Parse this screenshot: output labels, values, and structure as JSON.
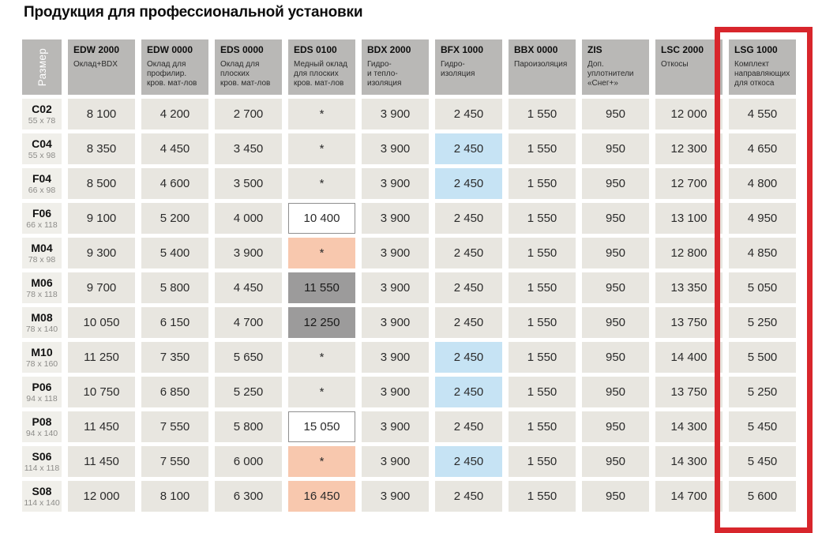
{
  "page": {
    "title": "Продукция для профессиональной установки"
  },
  "table": {
    "size_header": "Размер",
    "columns": [
      {
        "code": "EDW 2000",
        "desc": "Оклад+BDX"
      },
      {
        "code": "EDW 0000",
        "desc": "Оклад для\nпрофилир.\nкров. мат-лов"
      },
      {
        "code": "EDS 0000",
        "desc": "Оклад для\nплоских\nкров. мат-лов"
      },
      {
        "code": "EDS 0100",
        "desc": "Медный оклад\nдля плоских\nкров. мат-лов"
      },
      {
        "code": "BDX 2000",
        "desc": "Гидро-\nи тепло-\nизоляция"
      },
      {
        "code": "BFX 1000",
        "desc": "Гидро-\nизоляция"
      },
      {
        "code": "BBX 0000",
        "desc": "Пароизоляция"
      },
      {
        "code": "ZIS",
        "desc": "Доп.\nуплотнители\n«Снег+»"
      },
      {
        "code": "LSC 2000",
        "desc": "Откосы"
      },
      {
        "code": "LSG 1000",
        "desc": "Комплект\nнаправляющих\nдля откоса"
      }
    ],
    "rows": [
      {
        "code": "C02",
        "size": "55 x 78",
        "values": [
          "8 100",
          "4 200",
          "2 700",
          "*",
          "3 900",
          "2 450",
          "1 550",
          "950",
          "12 000",
          "4 550"
        ],
        "styles": [
          "",
          "",
          "",
          "",
          "",
          "",
          "",
          "",
          "",
          ""
        ]
      },
      {
        "code": "C04",
        "size": "55 x 98",
        "values": [
          "8 350",
          "4 450",
          "3 450",
          "*",
          "3 900",
          "2 450",
          "1 550",
          "950",
          "12 300",
          "4 650"
        ],
        "styles": [
          "",
          "",
          "",
          "",
          "",
          "blue",
          "",
          "",
          "",
          ""
        ]
      },
      {
        "code": "F04",
        "size": "66 x 98",
        "values": [
          "8 500",
          "4 600",
          "3 500",
          "*",
          "3 900",
          "2 450",
          "1 550",
          "950",
          "12 700",
          "4 800"
        ],
        "styles": [
          "",
          "",
          "",
          "",
          "",
          "blue",
          "",
          "",
          "",
          ""
        ]
      },
      {
        "code": "F06",
        "size": "66 x 118",
        "values": [
          "9 100",
          "5 200",
          "4 000",
          "10 400",
          "3 900",
          "2 450",
          "1 550",
          "950",
          "13 100",
          "4 950"
        ],
        "styles": [
          "",
          "",
          "",
          "white",
          "",
          "",
          "",
          "",
          "",
          ""
        ]
      },
      {
        "code": "M04",
        "size": "78 x 98",
        "values": [
          "9 300",
          "5 400",
          "3 900",
          "*",
          "3 900",
          "2 450",
          "1 550",
          "950",
          "12 800",
          "4 850"
        ],
        "styles": [
          "",
          "",
          "",
          "salmon",
          "",
          "",
          "",
          "",
          "",
          ""
        ]
      },
      {
        "code": "M06",
        "size": "78 x 118",
        "values": [
          "9 700",
          "5 800",
          "4 450",
          "11 550",
          "3 900",
          "2 450",
          "1 550",
          "950",
          "13 350",
          "5 050"
        ],
        "styles": [
          "",
          "",
          "",
          "gray",
          "",
          "",
          "",
          "",
          "",
          ""
        ]
      },
      {
        "code": "M08",
        "size": "78 x 140",
        "values": [
          "10 050",
          "6 150",
          "4 700",
          "12 250",
          "3 900",
          "2 450",
          "1 550",
          "950",
          "13 750",
          "5 250"
        ],
        "styles": [
          "",
          "",
          "",
          "gray",
          "",
          "",
          "",
          "",
          "",
          ""
        ]
      },
      {
        "code": "M10",
        "size": "78 x 160",
        "values": [
          "11 250",
          "7 350",
          "5 650",
          "*",
          "3 900",
          "2 450",
          "1 550",
          "950",
          "14 400",
          "5 500"
        ],
        "styles": [
          "",
          "",
          "",
          "",
          "",
          "blue",
          "",
          "",
          "",
          ""
        ]
      },
      {
        "code": "P06",
        "size": "94 x 118",
        "values": [
          "10 750",
          "6 850",
          "5 250",
          "*",
          "3 900",
          "2 450",
          "1 550",
          "950",
          "13 750",
          "5 250"
        ],
        "styles": [
          "",
          "",
          "",
          "",
          "",
          "blue",
          "",
          "",
          "",
          ""
        ]
      },
      {
        "code": "P08",
        "size": "94 x 140",
        "values": [
          "11 450",
          "7 550",
          "5 800",
          "15 050",
          "3 900",
          "2 450",
          "1 550",
          "950",
          "14 300",
          "5 450"
        ],
        "styles": [
          "",
          "",
          "",
          "white",
          "",
          "",
          "",
          "",
          "",
          ""
        ]
      },
      {
        "code": "S06",
        "size": "114 x 118",
        "values": [
          "11 450",
          "7 550",
          "6 000",
          "*",
          "3 900",
          "2 450",
          "1 550",
          "950",
          "14 300",
          "5 450"
        ],
        "styles": [
          "",
          "",
          "",
          "salmon",
          "",
          "blue",
          "",
          "",
          "",
          ""
        ]
      },
      {
        "code": "S08",
        "size": "114 x 140",
        "values": [
          "12 000",
          "8 100",
          "6 300",
          "16 450",
          "3 900",
          "2 450",
          "1 550",
          "950",
          "14 700",
          "5 600"
        ],
        "styles": [
          "",
          "",
          "",
          "salmon",
          "",
          "",
          "",
          "",
          "",
          ""
        ]
      }
    ],
    "annotation": {
      "type": "red-outline",
      "around_column": "LSG 1000"
    },
    "colors": {
      "header_bg": "#b9b8b6",
      "cell_bg": "#e8e6e0",
      "row_label_bg": "#f0efea",
      "special_blue": "#c6e3f4",
      "special_salmon": "#f8c8ae",
      "special_dark_gray": "#9c9b9b",
      "special_white": "#ffffff",
      "highlight_red": "#d8262c"
    }
  }
}
